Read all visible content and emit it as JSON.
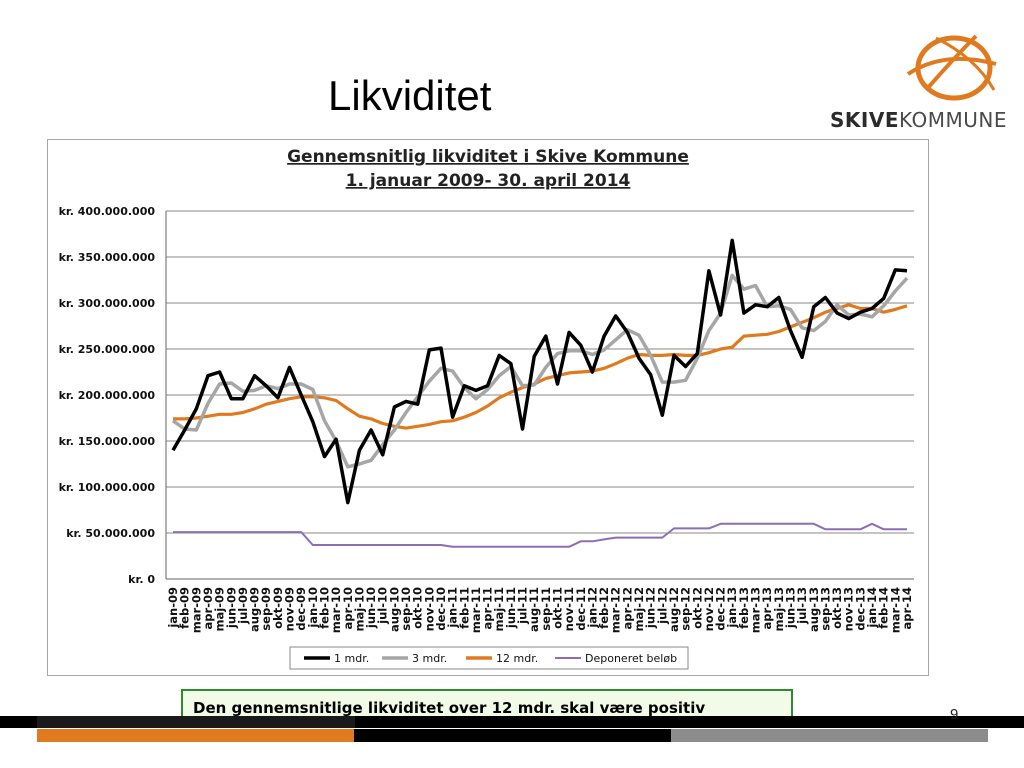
{
  "slide": {
    "title": "Likviditet",
    "note": "Den gennemsnitlige likviditet over 12 mdr. skal være positiv",
    "page_number": "9"
  },
  "logo": {
    "brand_bold": "SKIVE",
    "brand_light": "KOMMUNE"
  },
  "colors": {
    "accent_orange": "#e07a1f",
    "one_month": "#000000",
    "three_month": "#a6a6a6",
    "twelve_month": "#e07a1f",
    "deposited": "#8b6fb5",
    "note_border": "#2e8b2e",
    "bar_dark": "#000000",
    "bar_gray": "#8c8c8c"
  },
  "chart_data": {
    "type": "line",
    "title": "Gennemsnitlig likviditet i Skive Kommune",
    "subtitle": "1. januar 2009- 30. april 2014",
    "xlabel": "",
    "ylabel": "",
    "ylim": [
      0,
      400000000
    ],
    "y_ticks": [
      "kr. 0",
      "kr. 50.000.000",
      "kr. 100.000.000",
      "kr. 150.000.000",
      "kr. 200.000.000",
      "kr. 250.000.000",
      "kr. 300.000.000",
      "kr. 350.000.000",
      "kr. 400.000.000"
    ],
    "y_tick_values": [
      0,
      50000000,
      100000000,
      150000000,
      200000000,
      250000000,
      300000000,
      350000000,
      400000000
    ],
    "grid": true,
    "legend_position": "bottom",
    "categories": [
      "jan-09",
      "feb-09",
      "mar-09",
      "apr-09",
      "maj-09",
      "jun-09",
      "jul-09",
      "aug-09",
      "sep-09",
      "okt-09",
      "nov-09",
      "dec-09",
      "jan-10",
      "feb-10",
      "mar-10",
      "apr-10",
      "maj-10",
      "jun-10",
      "jul-10",
      "aug-10",
      "sep-10",
      "okt-10",
      "nov-10",
      "dec-10",
      "jan-11",
      "feb-11",
      "mar-11",
      "apr-11",
      "maj-11",
      "jun-11",
      "jul-11",
      "aug-11",
      "sep-11",
      "okt-11",
      "nov-11",
      "dec-11",
      "jan-12",
      "feb-12",
      "mar-12",
      "apr-12",
      "maj-12",
      "jun-12",
      "jul-12",
      "aug-12",
      "sep-12",
      "okt-12",
      "nov-12",
      "dec-12",
      "jan-13",
      "feb-13",
      "mar-13",
      "apr-13",
      "maj-13",
      "jun-13",
      "jul-13",
      "aug-13",
      "sep-13",
      "okt-13",
      "nov-13",
      "dec-13",
      "jan-14",
      "feb-14",
      "mar-14",
      "apr-14"
    ],
    "series": [
      {
        "name": "1 mdr.",
        "color": "#000000",
        "values": [
          140,
          162,
          185,
          221,
          225,
          196,
          196,
          221,
          210,
          197,
          230,
          200,
          171,
          133,
          152,
          83,
          140,
          162,
          135,
          187,
          193,
          190,
          249,
          251,
          176,
          210,
          205,
          210,
          243,
          234,
          163,
          242,
          264,
          212,
          268,
          254,
          225,
          264,
          286,
          268,
          240,
          222,
          178,
          243,
          231,
          245,
          335,
          287,
          368,
          289,
          298,
          296,
          306,
          270,
          241,
          296,
          306,
          289,
          283,
          290,
          294,
          305,
          336,
          335
        ]
      },
      {
        "name": "3 mdr.",
        "color": "#a6a6a6",
        "values": [
          172,
          163,
          162,
          191,
          212,
          213,
          204,
          205,
          210,
          207,
          212,
          212,
          206,
          172,
          150,
          122,
          125,
          129,
          146,
          162,
          181,
          198,
          215,
          229,
          226,
          208,
          196,
          206,
          221,
          231,
          210,
          211,
          230,
          245,
          248,
          248,
          244,
          249,
          260,
          271,
          265,
          243,
          214,
          214,
          216,
          240,
          270,
          289,
          330,
          315,
          319,
          296,
          297,
          293,
          273,
          270,
          280,
          298,
          287,
          288,
          285,
          297,
          313,
          327
        ]
      },
      {
        "name": "12 mdr.",
        "color": "#e07a1f",
        "values": [
          174,
          174,
          175,
          177,
          179,
          179,
          181,
          185,
          190,
          193,
          196,
          198,
          198,
          197,
          194,
          185,
          177,
          174,
          169,
          166,
          164,
          166,
          168,
          171,
          172,
          176,
          181,
          188,
          197,
          203,
          208,
          212,
          218,
          221,
          224,
          225,
          226,
          229,
          234,
          240,
          244,
          243,
          243,
          244,
          243,
          243,
          246,
          250,
          252,
          264,
          265,
          266,
          269,
          274,
          279,
          284,
          290,
          294,
          298,
          294,
          294,
          290,
          293,
          297
        ]
      },
      {
        "name": "Deponeret beløb",
        "color": "#8b6fb5",
        "values": [
          51,
          51,
          51,
          51,
          51,
          51,
          51,
          51,
          51,
          51,
          51,
          51,
          37,
          37,
          37,
          37,
          37,
          37,
          37,
          37,
          37,
          37,
          37,
          37,
          35,
          35,
          35,
          35,
          35,
          35,
          35,
          35,
          35,
          35,
          35,
          41,
          41,
          43,
          45,
          45,
          45,
          45,
          45,
          55,
          55,
          55,
          55,
          60,
          60,
          60,
          60,
          60,
          60,
          60,
          60,
          60,
          54,
          54,
          54,
          54,
          60,
          54,
          54,
          54
        ]
      }
    ],
    "units_note": "values in millions of kr."
  }
}
